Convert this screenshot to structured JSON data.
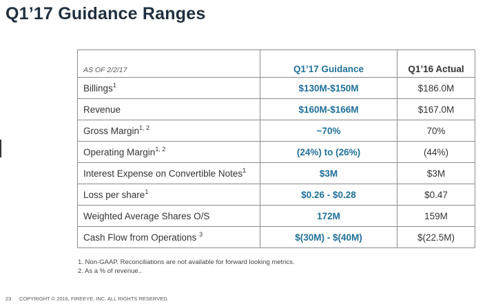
{
  "title": "Q1’17 Guidance Ranges",
  "table": {
    "as_of": "AS OF 2/2/17",
    "col_guidance": "Q1’17 Guidance",
    "col_actual": "Q1’16 Actual",
    "rows": [
      {
        "label": "Billings",
        "sup": "1",
        "guidance": "$130M-$150M",
        "actual": "$186.0M"
      },
      {
        "label": "Revenue",
        "sup": "",
        "guidance": "$160M-$166M",
        "actual": "$167.0M"
      },
      {
        "label": "Gross Margin",
        "sup": "1, 2",
        "guidance": "~70%",
        "actual": "70%"
      },
      {
        "label": "Operating Margin",
        "sup": "1, 2",
        "guidance": "(24%) to (26%)",
        "actual": "(44%)"
      },
      {
        "label": "Interest Expense on Convertible Notes",
        "sup": "1",
        "guidance": "$3M",
        "actual": "$3M"
      },
      {
        "label": "Loss per share",
        "sup": "1",
        "guidance": "$0.26 - $0.28",
        "actual": "$0.47"
      },
      {
        "label": "Weighted Average Shares O/S",
        "sup": "",
        "guidance": "172M",
        "actual": "159M"
      },
      {
        "label": "Cash Flow from Operations ",
        "sup": "3",
        "guidance": "$(30M) - $(40M)",
        "actual": "$(22.5M)"
      }
    ]
  },
  "notes": [
    "1. Non-GAAP.  Reconciliations are not available for forward looking metrics.",
    "2. As a % of revenue.."
  ],
  "footer": {
    "page": "23",
    "copyright": "COPYRIGHT © 2016, FIREEYE, INC. ALL RIGHTS RESERVED."
  }
}
